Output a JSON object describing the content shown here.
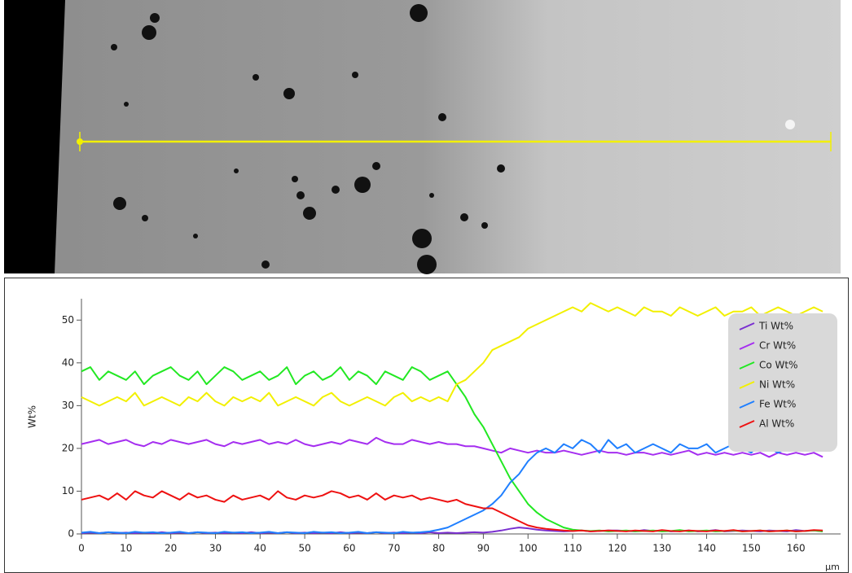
{
  "chart_data": {
    "type": "line",
    "ylabel": "Wt%",
    "xlabel": "µm",
    "x": [
      0,
      2,
      4,
      6,
      8,
      10,
      12,
      14,
      16,
      18,
      20,
      22,
      24,
      26,
      28,
      30,
      32,
      34,
      36,
      38,
      40,
      42,
      44,
      46,
      48,
      50,
      52,
      54,
      56,
      58,
      60,
      62,
      64,
      66,
      68,
      70,
      72,
      74,
      76,
      78,
      80,
      82,
      84,
      86,
      88,
      90,
      92,
      94,
      96,
      98,
      100,
      102,
      104,
      106,
      108,
      110,
      112,
      114,
      116,
      118,
      120,
      122,
      124,
      126,
      128,
      130,
      132,
      134,
      136,
      138,
      140,
      142,
      144,
      146,
      148,
      150,
      152,
      154,
      156,
      158,
      160,
      162,
      164,
      166
    ],
    "series": [
      {
        "name": "Ti Wt%",
        "color": "#7a2fd0",
        "values": [
          0.2,
          0.3,
          0.2,
          0.4,
          0.2,
          0.3,
          0.2,
          0.3,
          0.2,
          0.4,
          0.2,
          0.3,
          0.2,
          0.4,
          0.2,
          0.3,
          0.2,
          0.3,
          0.2,
          0.4,
          0.2,
          0.3,
          0.2,
          0.4,
          0.2,
          0.3,
          0.2,
          0.3,
          0.2,
          0.4,
          0.2,
          0.3,
          0.2,
          0.4,
          0.2,
          0.3,
          0.2,
          0.3,
          0.2,
          0.4,
          0.2,
          0.3,
          0.2,
          0.3,
          0.4,
          0.3,
          0.5,
          0.8,
          1.2,
          1.5,
          1.3,
          1,
          0.8,
          0.7,
          0.6,
          0.7,
          0.8,
          0.6,
          0.7,
          0.8,
          0.8,
          0.7,
          0.6,
          0.9,
          0.7,
          0.8,
          0.6,
          0.7,
          0.8,
          0.6,
          0.7,
          0.9,
          0.6,
          0.7,
          0.8,
          0.7,
          0.6,
          0.8,
          0.7,
          0.6,
          0.9,
          0.7,
          0.8,
          0.6
        ]
      },
      {
        "name": "Cr Wt%",
        "color": "#a52ef0",
        "values": [
          21,
          21.5,
          22,
          21,
          21.5,
          22,
          21,
          20.5,
          21.5,
          21,
          22,
          21.5,
          21,
          21.5,
          22,
          21,
          20.5,
          21.5,
          21,
          21.5,
          22,
          21,
          21.5,
          21,
          22,
          21,
          20.5,
          21,
          21.5,
          21,
          22,
          21.5,
          21,
          22.5,
          21.5,
          21,
          21,
          22,
          21.5,
          21,
          21.5,
          21,
          21,
          20.5,
          20.5,
          20,
          19.5,
          19,
          20,
          19.5,
          19,
          19.5,
          19,
          19,
          19.5,
          19,
          18.5,
          19,
          19.5,
          19,
          19,
          18.5,
          19,
          19,
          18.5,
          19,
          18.5,
          19,
          19.5,
          18.5,
          19,
          18.5,
          19,
          18.5,
          19,
          18.5,
          19,
          18,
          19,
          18.5,
          19,
          18.5,
          19,
          18
        ]
      },
      {
        "name": "Co Wt%",
        "color": "#22e822",
        "values": [
          38,
          39,
          36,
          38,
          37,
          36,
          38,
          35,
          37,
          38,
          39,
          37,
          36,
          38,
          35,
          37,
          39,
          38,
          36,
          37,
          38,
          36,
          37,
          39,
          35,
          37,
          38,
          36,
          37,
          39,
          36,
          38,
          37,
          35,
          38,
          37,
          36,
          39,
          38,
          36,
          37,
          38,
          35,
          32,
          28,
          25,
          21,
          17,
          13,
          10,
          7,
          5,
          3.5,
          2.5,
          1.5,
          1,
          0.8,
          0.7,
          0.8,
          0.6,
          0.7,
          0.8,
          0.6,
          0.7,
          0.8,
          0.6,
          0.7,
          0.9,
          0.6,
          0.7,
          0.8,
          0.6,
          0.7,
          0.8,
          0.6,
          0.7,
          0.8,
          0.6,
          0.7,
          0.8,
          0.6,
          0.7,
          0.8,
          0.6
        ]
      },
      {
        "name": "Ni Wt%",
        "color": "#f2f000",
        "values": [
          32,
          31,
          30,
          31,
          32,
          31,
          33,
          30,
          31,
          32,
          31,
          30,
          32,
          31,
          33,
          31,
          30,
          32,
          31,
          32,
          31,
          33,
          30,
          31,
          32,
          31,
          30,
          32,
          33,
          31,
          30,
          31,
          32,
          31,
          30,
          32,
          33,
          31,
          32,
          31,
          32,
          31,
          35,
          36,
          38,
          40,
          43,
          44,
          45,
          46,
          48,
          49,
          50,
          51,
          52,
          53,
          52,
          54,
          53,
          52,
          53,
          52,
          51,
          53,
          52,
          52,
          51,
          53,
          52,
          51,
          52,
          53,
          51,
          52,
          52,
          53,
          51,
          52,
          53,
          52,
          51,
          52,
          53,
          52
        ]
      },
      {
        "name": "Fe Wt%",
        "color": "#1f7fff",
        "values": [
          0.3,
          0.5,
          0.2,
          0.4,
          0.3,
          0.2,
          0.5,
          0.3,
          0.4,
          0.2,
          0.3,
          0.5,
          0.2,
          0.4,
          0.3,
          0.2,
          0.5,
          0.3,
          0.4,
          0.2,
          0.3,
          0.5,
          0.2,
          0.4,
          0.3,
          0.2,
          0.5,
          0.3,
          0.4,
          0.2,
          0.3,
          0.5,
          0.2,
          0.4,
          0.3,
          0.2,
          0.5,
          0.3,
          0.4,
          0.6,
          1,
          1.5,
          2.5,
          3.5,
          4.5,
          5.5,
          7,
          9,
          12,
          14,
          17,
          19,
          20,
          19,
          21,
          20,
          22,
          21,
          19,
          22,
          20,
          21,
          19,
          20,
          21,
          20,
          19,
          21,
          20,
          20,
          21,
          19,
          20,
          21,
          20,
          19,
          21,
          20,
          19,
          20,
          21,
          20,
          20,
          20
        ]
      },
      {
        "name": "Al Wt%",
        "color": "#ee1111",
        "values": [
          8,
          8.5,
          9,
          8,
          9.5,
          8,
          10,
          9,
          8.5,
          10,
          9,
          8,
          9.5,
          8.5,
          9,
          8,
          7.5,
          9,
          8,
          8.5,
          9,
          8,
          10,
          8.5,
          8,
          9,
          8.5,
          9,
          10,
          9.5,
          8.5,
          9,
          8,
          9.5,
          8,
          9,
          8.5,
          9,
          8,
          8.5,
          8,
          7.5,
          8,
          7,
          6.5,
          6,
          6,
          5,
          4,
          3,
          2,
          1.5,
          1.2,
          1,
          0.8,
          0.7,
          0.8,
          0.6,
          0.7,
          0.8,
          0.7,
          0.6,
          0.8,
          0.7,
          0.6,
          0.9,
          0.7,
          0.6,
          0.8,
          0.7,
          0.6,
          0.8,
          0.7,
          0.9,
          0.6,
          0.7,
          0.8,
          0.6,
          0.7,
          0.8,
          0.6,
          0.7,
          0.9,
          0.8
        ]
      }
    ],
    "xlim": [
      0,
      170
    ],
    "ylim": [
      0,
      55
    ],
    "xticks": [
      0,
      10,
      20,
      30,
      40,
      50,
      60,
      70,
      80,
      90,
      100,
      110,
      120,
      130,
      140,
      150,
      160
    ],
    "yticks": [
      0,
      10,
      20,
      30,
      40,
      50
    ],
    "legend": "upper right"
  }
}
